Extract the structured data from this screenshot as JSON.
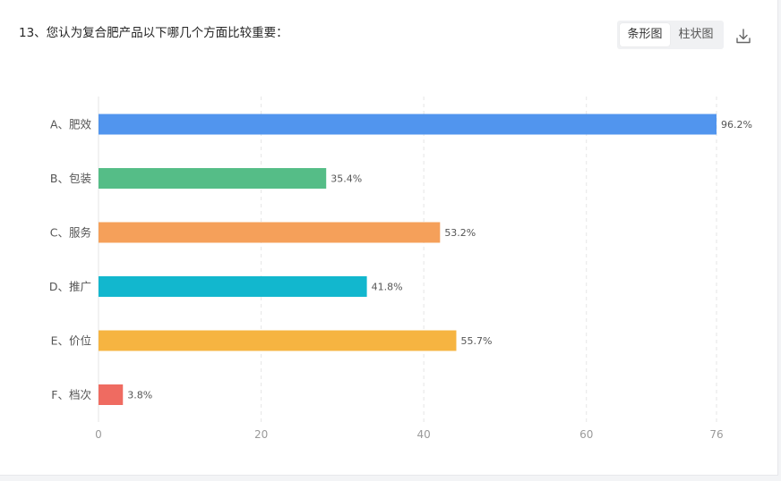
{
  "question": {
    "title": "13、您认为复合肥产品以下哪几个方面比较重要："
  },
  "toolbar": {
    "bar_view_label": "条形图",
    "column_view_label": "柱状图",
    "download_icon": "download-icon"
  },
  "chart_data": {
    "type": "bar",
    "orientation": "horizontal",
    "categories": [
      "A、肥效",
      "B、包装",
      "C、服务",
      "D、推广",
      "E、价位",
      "F、档次"
    ],
    "values": [
      76,
      28,
      42,
      33,
      44,
      3
    ],
    "value_labels": [
      "96.2%",
      "35.4%",
      "53.2%",
      "41.8%",
      "55.7%",
      "3.8%"
    ],
    "colors": [
      "#5195ee",
      "#55bd87",
      "#f5a05a",
      "#12b7ce",
      "#f6b441",
      "#ef6b61"
    ],
    "xticks": [
      0,
      20,
      40,
      60,
      76
    ],
    "xlim": [
      0,
      76
    ],
    "grid": true
  }
}
